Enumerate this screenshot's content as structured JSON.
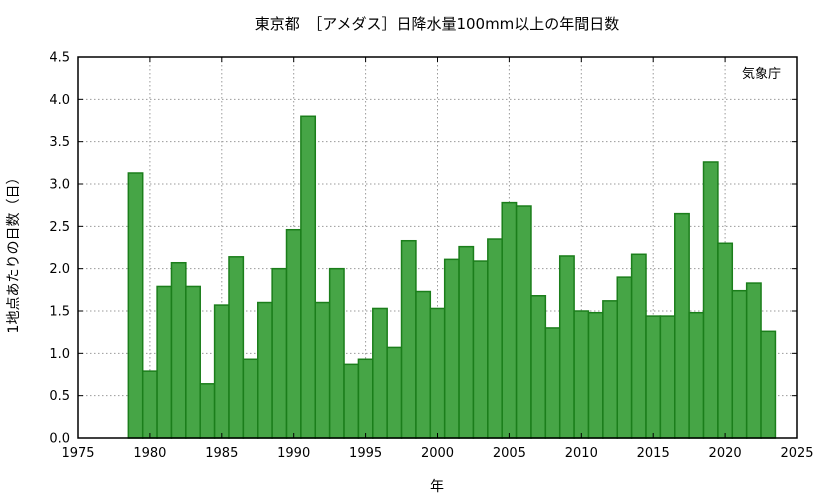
{
  "chart_data": {
    "type": "bar",
    "title": "東京都　［アメダス］日降水量100mm以上の年間日数",
    "xlabel": "年",
    "ylabel": "1地点あたりの日数（日）",
    "credit": "気象庁",
    "xlim": [
      1975,
      2025
    ],
    "ylim": [
      0,
      4.5
    ],
    "xticks": [
      1975,
      1980,
      1985,
      1990,
      1995,
      2000,
      2005,
      2010,
      2015,
      2020,
      2025
    ],
    "yticks": [
      "0.0",
      "0.5",
      "1.0",
      "1.5",
      "2.0",
      "2.5",
      "3.0",
      "3.5",
      "4.0",
      "4.5"
    ],
    "grid": true,
    "colors": {
      "bar_fill": "#46a546",
      "bar_edge": "#1b7e1b"
    },
    "x": [
      1979,
      1980,
      1981,
      1982,
      1983,
      1984,
      1985,
      1986,
      1987,
      1988,
      1989,
      1990,
      1991,
      1992,
      1993,
      1994,
      1995,
      1996,
      1997,
      1998,
      1999,
      2000,
      2001,
      2002,
      2003,
      2004,
      2005,
      2006,
      2007,
      2008,
      2009,
      2010,
      2011,
      2012,
      2013,
      2014,
      2015,
      2016,
      2017,
      2018,
      2019,
      2020,
      2021,
      2022,
      2023
    ],
    "values": [
      3.13,
      0.79,
      1.79,
      2.07,
      1.79,
      0.64,
      1.57,
      2.14,
      0.93,
      1.6,
      2.0,
      2.46,
      3.8,
      1.6,
      2.0,
      0.87,
      0.93,
      1.53,
      1.07,
      2.33,
      1.73,
      1.53,
      2.11,
      2.26,
      2.09,
      2.35,
      2.78,
      2.74,
      1.68,
      1.3,
      2.15,
      1.5,
      1.48,
      1.62,
      1.9,
      2.17,
      1.44,
      1.44,
      2.65,
      1.48,
      3.26,
      2.3,
      1.74,
      1.83,
      1.26
    ]
  }
}
